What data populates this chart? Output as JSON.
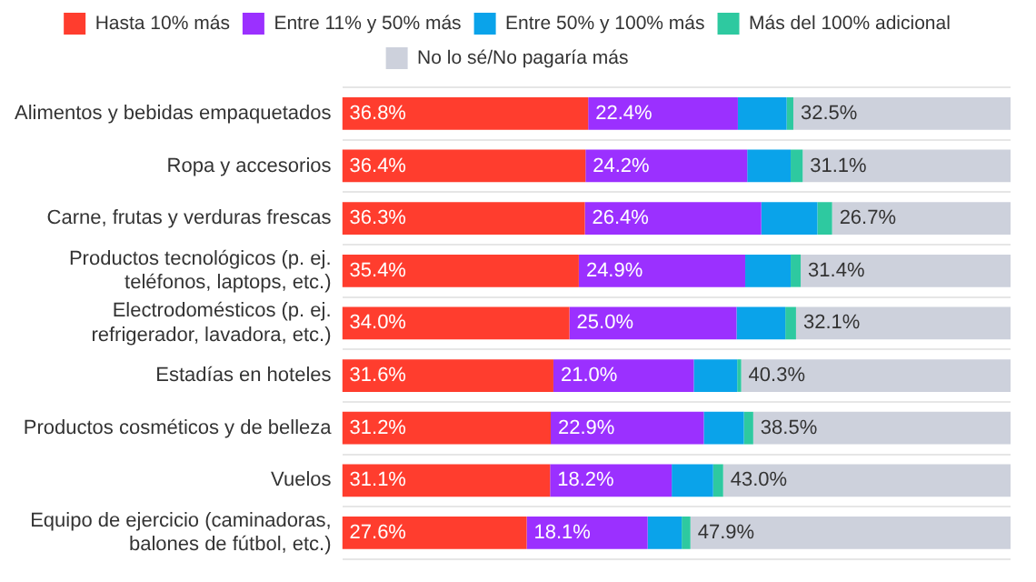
{
  "chart_data": {
    "type": "bar",
    "orientation": "horizontal",
    "stacked": true,
    "legend": "top",
    "grid": "y",
    "tick_labels": "y",
    "xlim": [
      0,
      100
    ],
    "categories": [
      "Alimentos y bebidas empaquetados",
      "Ropa y accesorios",
      "Carne, frutas y verduras frescas",
      "Productos tecnológicos (p. ej. teléfonos, laptops, etc.)",
      "Electrodomésticos (p. ej. refrigerador, lavadora, etc.)",
      "Estadías en hoteles",
      "Productos cosméticos y de belleza",
      "Vuelos",
      "Equipo de ejercicio (caminadoras, balones de fútbol, etc.)"
    ],
    "series": [
      {
        "name": "Hasta 10% más",
        "color": "#ff3d2e",
        "values": [
          36.8,
          36.4,
          36.3,
          35.4,
          34.0,
          31.6,
          31.2,
          31.1,
          27.6
        ],
        "value_labels": [
          "36.8%",
          "36.4%",
          "36.3%",
          "35.4%",
          "34.0%",
          "31.6%",
          "31.2%",
          "31.1%",
          "27.6%"
        ]
      },
      {
        "name": "Entre 11% y 50% más",
        "color": "#9b30ff",
        "values": [
          22.4,
          24.2,
          26.4,
          24.9,
          25.0,
          21.0,
          22.9,
          18.2,
          18.1
        ],
        "value_labels": [
          "22.4%",
          "24.2%",
          "26.4%",
          "24.9%",
          "25.0%",
          "21.0%",
          "22.9%",
          "18.2%",
          "18.1%"
        ]
      },
      {
        "name": "Entre 50% y 100% más",
        "color": "#0aa3ea",
        "values": [
          7.3,
          6.5,
          8.4,
          6.8,
          7.3,
          6.5,
          6.0,
          6.2,
          5.1
        ]
      },
      {
        "name": "Más del 100% adicional",
        "color": "#2ec9a0",
        "values": [
          1.0,
          1.8,
          2.2,
          1.5,
          1.6,
          0.6,
          1.4,
          1.5,
          1.3
        ]
      },
      {
        "name": "No lo sé/No pagaría más",
        "color": "#cdd1dc",
        "values": [
          32.5,
          31.1,
          26.7,
          31.4,
          32.1,
          40.3,
          38.5,
          43.0,
          47.9
        ],
        "value_labels": [
          "32.5%",
          "31.1%",
          "26.7%",
          "31.4%",
          "32.1%",
          "40.3%",
          "38.5%",
          "43.0%",
          "47.9%"
        ]
      }
    ]
  }
}
